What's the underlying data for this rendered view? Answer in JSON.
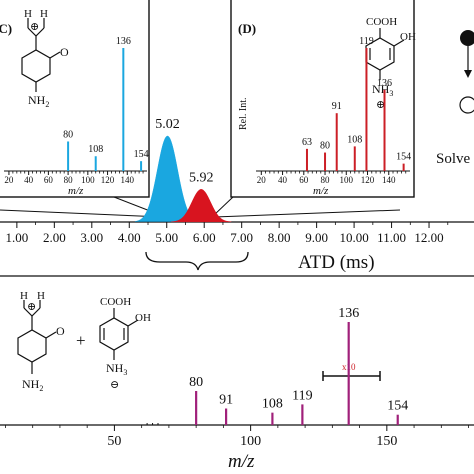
{
  "colors": {
    "blue": "#1aa7e0",
    "red": "#d8141f",
    "magenta": "#a0207a",
    "bar_red": "#cc1f26"
  },
  "chart_data": [
    {
      "type": "bar",
      "panel": "C",
      "panel_label": "(C)",
      "xlabel": "m/z",
      "x_ticks": [
        "20",
        "40",
        "60",
        "80",
        "100",
        "120",
        "140"
      ],
      "xlim": [
        15,
        160
      ],
      "bars": [
        {
          "mz": 80,
          "rel": 0.24,
          "label": "80"
        },
        {
          "mz": 108,
          "rel": 0.12,
          "label": "108"
        },
        {
          "mz": 136,
          "rel": 1.0,
          "label": "136"
        },
        {
          "mz": 154,
          "rel": 0.08,
          "label": "154"
        }
      ],
      "structure_labels": {
        "charge": "⊕",
        "h1": "H",
        "h2": "H",
        "oxygen": "O",
        "nh2": "NH",
        "nh2_sub": "2"
      }
    },
    {
      "type": "bar",
      "panel": "D",
      "panel_label": "(D)",
      "xlabel": "m/z",
      "ylabel": "Rel. Int.",
      "x_ticks": [
        "20",
        "40",
        "60",
        "80",
        "100",
        "120",
        "140"
      ],
      "xlim": [
        15,
        160
      ],
      "bars": [
        {
          "mz": 63,
          "rel": 0.18,
          "label": "63"
        },
        {
          "mz": 80,
          "rel": 0.15,
          "label": "80"
        },
        {
          "mz": 91,
          "rel": 0.47,
          "label": "91"
        },
        {
          "mz": 108,
          "rel": 0.2,
          "label": "108"
        },
        {
          "mz": 119,
          "rel": 1.0,
          "label": "119"
        },
        {
          "mz": 136,
          "rel": 0.66,
          "label": "136"
        },
        {
          "mz": 154,
          "rel": 0.06,
          "label": "154"
        }
      ],
      "structure_labels": {
        "cooh": "COOH",
        "oh": "OH",
        "nh3": "NH",
        "nh3_sub": "3",
        "charge": "⊕"
      }
    },
    {
      "type": "area",
      "xlabel": "ATD (ms)",
      "x_ticks": [
        "1.00",
        "2.00",
        "3.00",
        "4.00",
        "5.00",
        "6.00",
        "7.00",
        "8.00",
        "9.00",
        "10.00",
        "11.00",
        "12.00"
      ],
      "xlim": [
        0.55,
        13.2
      ],
      "peaks": [
        {
          "center": 5.02,
          "label": "5.02",
          "height": 1.0,
          "width": 0.27,
          "color": "#1aa7e0"
        },
        {
          "center": 5.92,
          "label": "5.92",
          "height": 0.38,
          "width": 0.25,
          "color": "#d8141f"
        }
      ]
    },
    {
      "type": "bar",
      "xlabel": "m/z",
      "x_ticks": [
        "50",
        "100",
        "150"
      ],
      "xlim": [
        8,
        182
      ],
      "bars": [
        {
          "mz": 80,
          "rel": 0.33,
          "label": "80"
        },
        {
          "mz": 91,
          "rel": 0.16,
          "label": "91"
        },
        {
          "mz": 108,
          "rel": 0.12,
          "label": "108"
        },
        {
          "mz": 119,
          "rel": 0.2,
          "label": "119"
        },
        {
          "mz": 136,
          "rel": 1.0,
          "label": "136"
        },
        {
          "mz": 154,
          "rel": 0.1,
          "label": "154"
        }
      ],
      "scale_annotation": "x10",
      "plus": "+",
      "structure_labels": {
        "cooh": "COOH",
        "oh": "OH",
        "nh3": "NH",
        "nh3_sub": "3",
        "charge_pos": "⊕",
        "charge_neg": "⊖",
        "h1": "H",
        "h2": "H",
        "oxygen": "O",
        "nh2": "NH",
        "nh2_sub": "2"
      }
    }
  ],
  "side_label": "Solve"
}
